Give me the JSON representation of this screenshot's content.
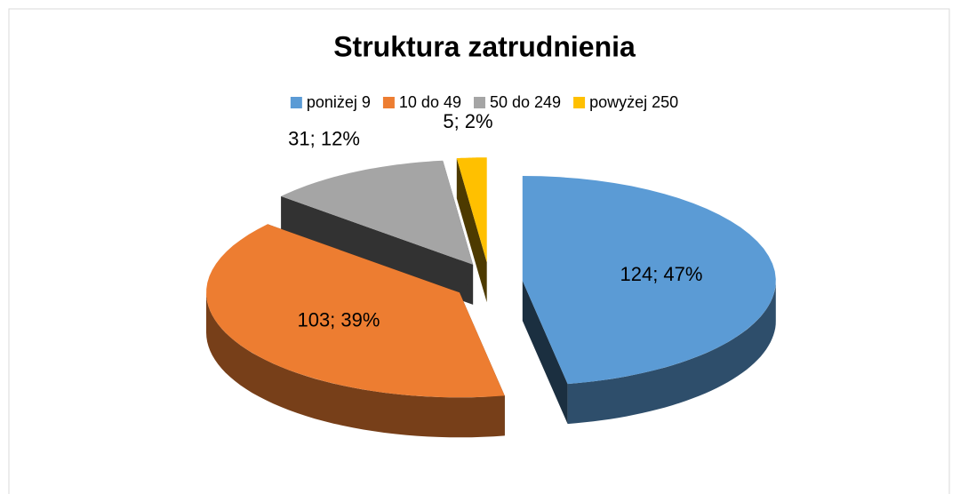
{
  "chart_data": {
    "type": "pie3d",
    "title": "Struktura zatrudnienia",
    "categories": [
      "poniżej 9",
      "10 do 49",
      "50 do 249",
      "powyżej 250"
    ],
    "values": [
      124,
      103,
      31,
      5
    ],
    "value_labels": [
      "124; 47%",
      "103; 39%",
      "31; 12%",
      "5; 2%"
    ],
    "colors": [
      "#5b9bd5",
      "#ed7d31",
      "#a5a5a5",
      "#ffc000"
    ],
    "legend": "top"
  }
}
